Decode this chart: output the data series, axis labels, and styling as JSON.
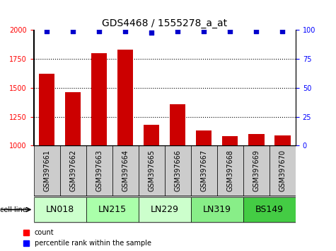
{
  "title": "GDS4468 / 1555278_a_at",
  "samples": [
    "GSM397661",
    "GSM397662",
    "GSM397663",
    "GSM397664",
    "GSM397665",
    "GSM397666",
    "GSM397667",
    "GSM397668",
    "GSM397669",
    "GSM397670"
  ],
  "counts": [
    1620,
    1460,
    1800,
    1830,
    1180,
    1360,
    1130,
    1080,
    1100,
    1090
  ],
  "percentile_ranks": [
    99,
    99,
    99,
    99,
    98,
    99,
    99,
    99,
    99,
    99
  ],
  "cell_lines": [
    {
      "label": "LN018",
      "start": 0,
      "end": 2,
      "color": "#ccffcc"
    },
    {
      "label": "LN215",
      "start": 2,
      "end": 4,
      "color": "#aaffaa"
    },
    {
      "label": "LN229",
      "start": 4,
      "end": 6,
      "color": "#ccffcc"
    },
    {
      "label": "LN319",
      "start": 6,
      "end": 8,
      "color": "#88ee88"
    },
    {
      "label": "BS149",
      "start": 8,
      "end": 10,
      "color": "#44cc44"
    }
  ],
  "ylim_left": [
    1000,
    2000
  ],
  "ylim_right": [
    0,
    100
  ],
  "yticks_left": [
    1000,
    1250,
    1500,
    1750,
    2000
  ],
  "yticks_right": [
    0,
    25,
    50,
    75,
    100
  ],
  "bar_color": "#cc0000",
  "dot_color": "#0000cc",
  "bar_width": 0.6,
  "background_color": "#ffffff",
  "sample_bg_color": "#cccccc",
  "title_fontsize": 10,
  "tick_fontsize": 7,
  "sample_fontsize": 7,
  "cell_line_fontsize": 9,
  "legend_fontsize": 7
}
